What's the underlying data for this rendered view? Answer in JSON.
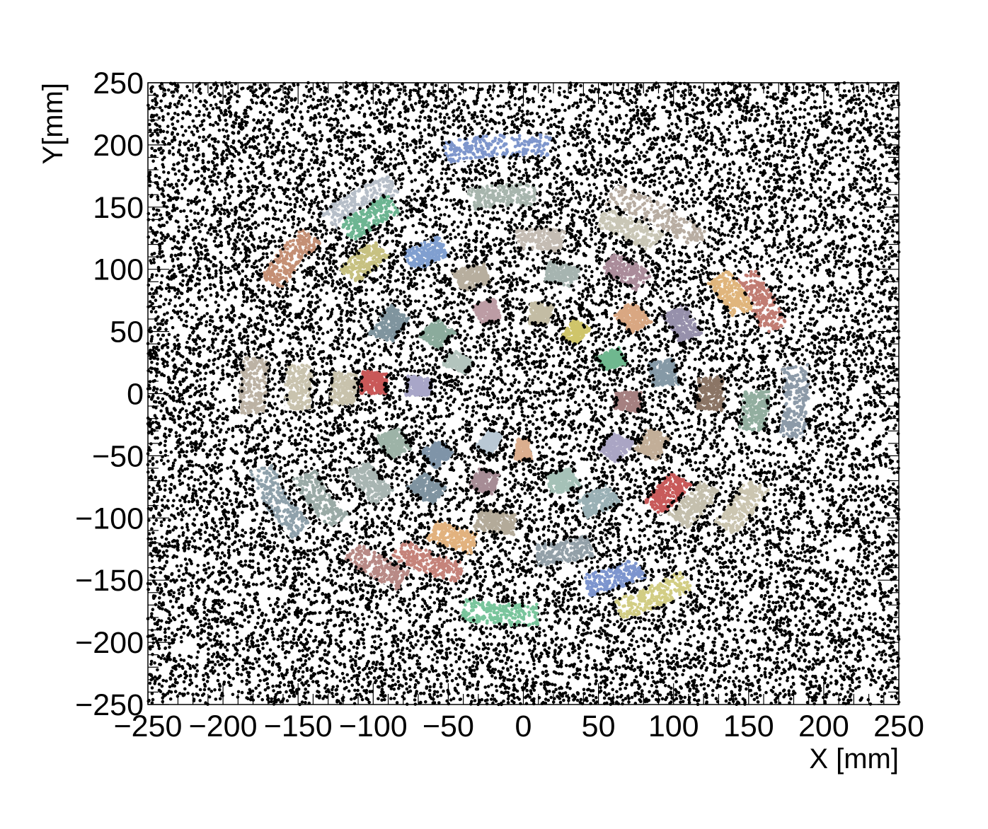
{
  "chart_data": {
    "type": "scatter",
    "title": "",
    "xlabel": "X [mm]",
    "ylabel": "Y[mm]",
    "xlim": [
      -250,
      250
    ],
    "ylim": [
      -250,
      250
    ],
    "x_ticks": [
      -250,
      -200,
      -150,
      -100,
      -50,
      0,
      50,
      100,
      150,
      200,
      250
    ],
    "y_ticks": [
      -250,
      -200,
      -150,
      -100,
      -50,
      0,
      50,
      100,
      150,
      200,
      250
    ],
    "x_tick_labels": [
      "−250",
      "−200",
      "−150",
      "−100",
      "−50",
      "0",
      "50",
      "100",
      "150",
      "200",
      "250"
    ],
    "y_tick_labels": [
      "−250",
      "−200",
      "−150",
      "−100",
      "−50",
      "0",
      "50",
      "100",
      "150",
      "200",
      "250"
    ],
    "grid": false,
    "legend": "none",
    "background_series": {
      "name": "",
      "color": "#000000",
      "description_of_distribution": "uniform noise over full range",
      "approx_count": 22000
    },
    "clusters": [
      {
        "r": 200,
        "phi_deg": 95,
        "arc_deg": 20,
        "color": "#7e96cc"
      },
      {
        "r": 190,
        "phi_deg": 125,
        "arc_deg": 16,
        "color": "#b6bec8"
      },
      {
        "r": 175,
        "phi_deg": 126,
        "arc_deg": 13,
        "color": "#6db592"
      },
      {
        "r": 190,
        "phi_deg": 145,
        "arc_deg": 14,
        "color": "#c48f74"
      },
      {
        "r": 170,
        "phi_deg": 58,
        "arc_deg": 24,
        "color": "#b8ada2"
      },
      {
        "r": 175,
        "phi_deg": 25,
        "arc_deg": 16,
        "color": "#c17c72"
      },
      {
        "r": 182,
        "phi_deg": -2,
        "arc_deg": 18,
        "color": "#8c9aa8"
      },
      {
        "r": 172,
        "phi_deg": -32,
        "arc_deg": 14,
        "color": "#cbc5b0"
      },
      {
        "r": 185,
        "phi_deg": -62,
        "arc_deg": 16,
        "color": "#d2cd84"
      },
      {
        "r": 178,
        "phi_deg": -95,
        "arc_deg": 16,
        "color": "#79c59c"
      },
      {
        "r": 170,
        "phi_deg": -125,
        "arc_deg": 14,
        "color": "#b88a86"
      },
      {
        "r": 185,
        "phi_deg": -152,
        "arc_deg": 18,
        "color": "#8fa1ab"
      },
      {
        "r": 180,
        "phi_deg": 178,
        "arc_deg": 14,
        "color": "#bcb2a4"
      },
      {
        "r": 160,
        "phi_deg": 95,
        "arc_deg": 16,
        "color": "#a7b5ad"
      },
      {
        "r": 150,
        "phi_deg": 135,
        "arc_deg": 12,
        "color": "#c7c181"
      },
      {
        "r": 150,
        "phi_deg": 62,
        "arc_deg": 16,
        "color": "#c9c6b6"
      },
      {
        "r": 160,
        "phi_deg": 30,
        "arc_deg": 12,
        "color": "#e0b57c"
      },
      {
        "r": 155,
        "phi_deg": -5,
        "arc_deg": 12,
        "color": "#92ae9f"
      },
      {
        "r": 145,
        "phi_deg": -38,
        "arc_deg": 14,
        "color": "#c4bfad"
      },
      {
        "r": 160,
        "phi_deg": -68,
        "arc_deg": 14,
        "color": "#7d95ce"
      },
      {
        "r": 150,
        "phi_deg": -115,
        "arc_deg": 18,
        "color": "#c5837a"
      },
      {
        "r": 160,
        "phi_deg": -148,
        "arc_deg": 16,
        "color": "#9aaaa6"
      },
      {
        "r": 150,
        "phi_deg": 178,
        "arc_deg": 14,
        "color": "#c9c3ae"
      },
      {
        "r": 130,
        "phi_deg": 120,
        "arc_deg": 12,
        "color": "#809fd0"
      },
      {
        "r": 125,
        "phi_deg": 85,
        "arc_deg": 14,
        "color": "#c4bcb3"
      },
      {
        "r": 120,
        "phi_deg": 55,
        "arc_deg": 14,
        "color": "#aa8c9a"
      },
      {
        "r": 120,
        "phi_deg": 28,
        "arc_deg": 12,
        "color": "#9690ab"
      },
      {
        "r": 125,
        "phi_deg": 0,
        "arc_deg": 12,
        "color": "#8b7565"
      },
      {
        "r": 125,
        "phi_deg": -40,
        "arc_deg": 14,
        "color": "#c85a5a"
      },
      {
        "r": 130,
        "phi_deg": -78,
        "arc_deg": 16,
        "color": "#93a0a8"
      },
      {
        "r": 125,
        "phi_deg": -112,
        "arc_deg": 14,
        "color": "#e2b27e"
      },
      {
        "r": 125,
        "phi_deg": -145,
        "arc_deg": 14,
        "color": "#a8b5b2"
      },
      {
        "r": 120,
        "phi_deg": 178,
        "arc_deg": 12,
        "color": "#c8c2ac"
      },
      {
        "r": 105,
        "phi_deg": 148,
        "arc_deg": 14,
        "color": "#7f949e"
      },
      {
        "r": 100,
        "phi_deg": 110,
        "arc_deg": 12,
        "color": "#b7ae9e"
      },
      {
        "r": 100,
        "phi_deg": 75,
        "arc_deg": 12,
        "color": "#a6b4b0"
      },
      {
        "r": 95,
        "phi_deg": 40,
        "arc_deg": 12,
        "color": "#d9a782"
      },
      {
        "r": 95,
        "phi_deg": 10,
        "arc_deg": 12,
        "color": "#8599a6"
      },
      {
        "r": 95,
        "phi_deg": -25,
        "arc_deg": 12,
        "color": "#c2ae98"
      },
      {
        "r": 100,
        "phi_deg": -60,
        "arc_deg": 14,
        "color": "#9ab0b5"
      },
      {
        "r": 105,
        "phi_deg": -100,
        "arc_deg": 14,
        "color": "#b3aa99"
      },
      {
        "r": 100,
        "phi_deg": -130,
        "arc_deg": 12,
        "color": "#7f93a0"
      },
      {
        "r": 95,
        "phi_deg": -155,
        "arc_deg": 12,
        "color": "#9db3a7"
      },
      {
        "r": 100,
        "phi_deg": 175,
        "arc_deg": 10,
        "color": "#c95858"
      },
      {
        "r": 75,
        "phi_deg": 140,
        "arc_deg": 14,
        "color": "#8bab9c"
      },
      {
        "r": 70,
        "phi_deg": 110,
        "arc_deg": 12,
        "color": "#bc9ca4"
      },
      {
        "r": 65,
        "phi_deg": 80,
        "arc_deg": 12,
        "color": "#c3bca4"
      },
      {
        "r": 60,
        "phi_deg": 55,
        "arc_deg": 12,
        "color": "#cfc56a"
      },
      {
        "r": 65,
        "phi_deg": 25,
        "arc_deg": 12,
        "color": "#6fb88f"
      },
      {
        "r": 70,
        "phi_deg": -5,
        "arc_deg": 12,
        "color": "#a58080"
      },
      {
        "r": 75,
        "phi_deg": -35,
        "arc_deg": 14,
        "color": "#aaa5c4"
      },
      {
        "r": 75,
        "phi_deg": -70,
        "arc_deg": 14,
        "color": "#a5c1b7"
      },
      {
        "r": 75,
        "phi_deg": -110,
        "arc_deg": 12,
        "color": "#a68c95"
      },
      {
        "r": 75,
        "phi_deg": -140,
        "arc_deg": 12,
        "color": "#7f94a8"
      },
      {
        "r": 70,
        "phi_deg": 175,
        "arc_deg": 12,
        "color": "#a8a6c8"
      },
      {
        "r": 50,
        "phi_deg": 150,
        "arc_deg": 14,
        "color": "#b3c4bd"
      },
      {
        "r": 45,
        "phi_deg": -120,
        "arc_deg": 14,
        "color": "#b9c8d4"
      },
      {
        "r": 45,
        "phi_deg": -90,
        "arc_deg": 12,
        "color": "#dbae8e"
      }
    ]
  }
}
